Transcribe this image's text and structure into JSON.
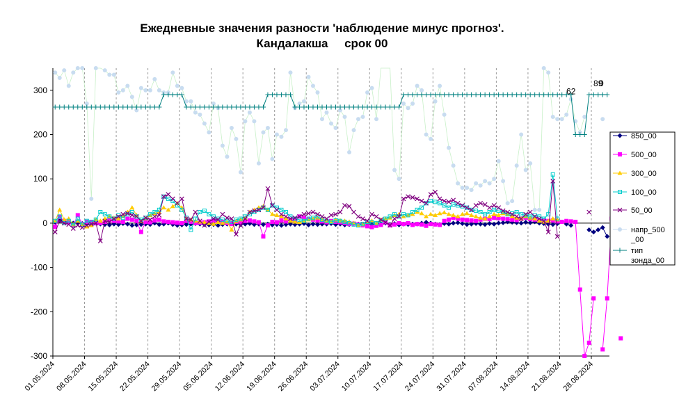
{
  "chart_data": {
    "type": "line",
    "title_lines": [
      "Ежедневные значения разности 'наблюдение минус прогноз'.",
      "Кандалакша     срок 00"
    ],
    "xlabel": "",
    "ylabel": "",
    "ylim": [
      -300,
      350
    ],
    "yticks": [
      -300,
      -200,
      -100,
      0,
      100,
      200,
      300
    ],
    "x_days": 123,
    "x_tick_labels": [
      "01.05.2024",
      "08.05.2024",
      "15.05.2024",
      "22.05.2024",
      "29.05.2024",
      "05.06.2024",
      "12.06.2024",
      "19.06.2024",
      "26.06.2024",
      "03.07.2024",
      "10.07.2024",
      "17.07.2024",
      "24.07.2024",
      "31.07.2024",
      "07.08.2024",
      "14.08.2024",
      "21.08.2024",
      "28.08.2024"
    ],
    "grid": "vertical dashed lines at x ticks",
    "legend_placement": "right",
    "series": [
      {
        "name": "850_00",
        "color": "#000080",
        "marker": "diamond",
        "style": "line",
        "values": [
          2,
          6,
          3,
          2,
          0,
          0,
          -1,
          -2,
          -3,
          0,
          -2,
          -3,
          -4,
          -2,
          -3,
          -1,
          -2,
          -5,
          -4,
          -3,
          -2,
          -3,
          0,
          -3,
          -2,
          0,
          -3,
          -5,
          -4,
          -3,
          -2,
          -1,
          -2,
          -3,
          -4,
          -3,
          -5,
          -3,
          -2,
          -1,
          -2,
          -3,
          -2,
          -1,
          -3,
          -2,
          -3,
          -2,
          -4,
          -3,
          -5,
          -3,
          -2,
          -3,
          -2,
          -1,
          -4,
          -2,
          -3,
          -2,
          -2,
          -1,
          -3,
          -2,
          -4,
          -3,
          -1,
          -2,
          -3,
          -4,
          -3,
          -2,
          -1,
          0,
          -3,
          -1,
          -4,
          -2,
          -3,
          -2,
          -2,
          0,
          2,
          0,
          -2,
          -3,
          -1,
          -2,
          0,
          1,
          -1,
          -3,
          -2,
          -1,
          -2,
          -3,
          -1,
          -2,
          0,
          1,
          3,
          2,
          1,
          0,
          2,
          1,
          3,
          0,
          -1,
          -2,
          -3,
          -1,
          null,
          -2,
          -5,
          null,
          null,
          null,
          -15,
          -20,
          -15,
          -10,
          -30
        ]
      },
      {
        "name": "500_00",
        "color": "#ff00ff",
        "marker": "square",
        "style": "line",
        "values": [
          -8,
          14,
          5,
          2,
          -5,
          18,
          -2,
          3,
          2,
          0,
          0,
          3,
          7,
          5,
          4,
          3,
          10,
          8,
          5,
          -20,
          3,
          2,
          6,
          8,
          4,
          3,
          2,
          1,
          0,
          5,
          3,
          0,
          1,
          2,
          4,
          6,
          5,
          3,
          0,
          -2,
          3,
          2,
          5,
          6,
          4,
          2,
          -30,
          -5,
          3,
          2,
          6,
          4,
          8,
          5,
          15,
          12,
          10,
          8,
          6,
          4,
          2,
          5,
          3,
          2,
          0,
          -2,
          -1,
          -3,
          -5,
          -7,
          -9,
          -6,
          -4,
          2,
          -5,
          -3,
          0,
          -2,
          0,
          -4,
          -2,
          -3,
          -6,
          -2,
          -3,
          -4,
          5,
          8,
          12,
          10,
          8,
          7,
          6,
          5,
          8,
          10,
          9,
          12,
          11,
          10,
          9,
          8,
          7,
          10,
          12,
          9,
          8,
          7,
          6,
          5,
          6,
          4,
          3,
          5,
          4,
          3,
          -150,
          -300,
          -270,
          -170,
          null,
          -285,
          -170,
          10,
          null,
          -260
        ]
      },
      {
        "name": "300_00",
        "color": "#ffcc00",
        "marker": "triangle",
        "style": "line",
        "values": [
          5,
          30,
          8,
          10,
          -3,
          5,
          -3,
          -8,
          -5,
          8,
          5,
          10,
          15,
          12,
          10,
          15,
          25,
          35,
          18,
          5,
          10,
          18,
          22,
          25,
          35,
          30,
          38,
          45,
          35,
          10,
          8,
          5,
          3,
          2,
          0,
          -2,
          2,
          0,
          3,
          -15,
          5,
          8,
          12,
          25,
          30,
          35,
          38,
          30,
          20,
          18,
          15,
          10,
          5,
          3,
          2,
          5,
          8,
          10,
          12,
          8,
          5,
          3,
          8,
          6,
          5,
          3,
          0,
          -5,
          -3,
          2,
          5,
          0,
          8,
          10,
          12,
          18,
          20,
          15,
          18,
          20,
          25,
          22,
          15,
          20,
          18,
          22,
          24,
          20,
          18,
          15,
          20,
          22,
          18,
          15,
          12,
          10,
          15,
          20,
          18,
          22,
          20,
          15,
          12,
          10,
          15,
          12,
          10,
          5,
          3,
          5,
          10,
          8,
          null,
          null,
          null,
          null,
          null,
          null,
          null,
          null,
          null,
          null,
          null
        ]
      },
      {
        "name": "100_00",
        "color": "#00cccc",
        "marker": "square-open",
        "style": "line",
        "values": [
          5,
          15,
          0,
          5,
          -5,
          10,
          -3,
          5,
          3,
          8,
          25,
          20,
          15,
          10,
          18,
          12,
          20,
          25,
          15,
          8,
          12,
          20,
          25,
          30,
          60,
          55,
          50,
          40,
          30,
          12,
          -15,
          10,
          25,
          28,
          20,
          15,
          10,
          8,
          5,
          3,
          8,
          10,
          15,
          20,
          25,
          30,
          35,
          30,
          40,
          35,
          30,
          25,
          15,
          10,
          8,
          5,
          10,
          12,
          15,
          8,
          5,
          3,
          6,
          5,
          3,
          0,
          -3,
          -5,
          -2,
          3,
          2,
          0,
          5,
          10,
          15,
          20,
          15,
          20,
          18,
          25,
          30,
          35,
          45,
          50,
          48,
          45,
          40,
          35,
          42,
          40,
          38,
          35,
          30,
          28,
          25,
          20,
          25,
          30,
          28,
          25,
          20,
          22,
          25,
          20,
          18,
          15,
          18,
          15,
          10,
          20,
          110,
          10,
          null,
          null,
          null,
          null,
          null,
          null,
          null,
          null,
          null
        ]
      },
      {
        "name": "50_00",
        "color": "#800080",
        "marker": "x",
        "style": "line",
        "values": [
          -20,
          5,
          0,
          -3,
          -12,
          -5,
          -10,
          -5,
          -2,
          0,
          -40,
          5,
          3,
          10,
          15,
          20,
          22,
          18,
          15,
          5,
          12,
          8,
          15,
          18,
          60,
          65,
          55,
          45,
          55,
          10,
          8,
          25,
          5,
          -5,
          3,
          10,
          8,
          20,
          12,
          10,
          -25,
          -5,
          10,
          25,
          28,
          30,
          35,
          78,
          40,
          30,
          20,
          15,
          10,
          12,
          15,
          20,
          22,
          25,
          20,
          15,
          10,
          18,
          20,
          25,
          40,
          38,
          25,
          15,
          10,
          5,
          20,
          15,
          8,
          2,
          -5,
          10,
          15,
          55,
          60,
          58,
          55,
          50,
          45,
          65,
          70,
          55,
          50,
          48,
          52,
          45,
          40,
          35,
          30,
          40,
          45,
          42,
          35,
          40,
          35,
          28,
          25,
          20,
          15,
          10,
          20,
          25,
          15,
          10,
          5,
          -20,
          95,
          -30,
          null,
          null,
          null,
          null,
          null,
          null,
          25,
          null,
          null
        ]
      },
      {
        "name": "напр_500_00",
        "color": "#c8dcf0",
        "line_color": "#c8f0c8",
        "marker": "circle",
        "style": "line",
        "values": [
          340,
          328,
          345,
          310,
          340,
          350,
          350,
          270,
          55,
          350,
          352,
          345,
          335,
          335,
          295,
          300,
          310,
          285,
          255,
          305,
          300,
          300,
          325,
          300,
          295,
          295,
          340,
          310,
          305,
          275,
          275,
          250,
          245,
          225,
          205,
          270,
          260,
          175,
          150,
          215,
          190,
          115,
          230,
          250,
          230,
          135,
          205,
          215,
          145,
          200,
          195,
          210,
          340,
          260,
          270,
          275,
          330,
          310,
          295,
          235,
          250,
          225,
          215,
          255,
          240,
          160,
          210,
          235,
          240,
          295,
          305,
          235,
          380,
          375,
          380,
          120,
          100,
          270,
          260,
          270,
          310,
          300,
          200,
          190,
          275,
          310,
          245,
          170,
          130,
          90,
          80,
          80,
          75,
          90,
          85,
          95,
          90,
          100,
          140,
          95,
          45,
          50,
          130,
          200,
          120,
          135,
          30,
          30,
          350,
          340,
          240,
          235,
          235,
          245,
          280,
          230,
          205,
          240,
          null,
          null,
          null,
          235,
          null
        ]
      },
      {
        "name": "тип зонда_00",
        "color": "#008080",
        "marker": "plus",
        "style": "line",
        "values": [
          262,
          262,
          262,
          262,
          262,
          262,
          262,
          262,
          262,
          262,
          262,
          262,
          262,
          262,
          262,
          262,
          262,
          262,
          262,
          262,
          262,
          262,
          262,
          262,
          290,
          290,
          290,
          290,
          290,
          262,
          262,
          262,
          262,
          262,
          262,
          262,
          262,
          262,
          262,
          262,
          262,
          262,
          262,
          262,
          262,
          262,
          262,
          290,
          290,
          290,
          290,
          290,
          290,
          262,
          262,
          262,
          262,
          262,
          262,
          262,
          262,
          262,
          262,
          262,
          262,
          262,
          262,
          262,
          262,
          262,
          262,
          262,
          262,
          262,
          262,
          262,
          262,
          290,
          290,
          290,
          290,
          290,
          290,
          290,
          290,
          290,
          290,
          290,
          290,
          290,
          290,
          290,
          290,
          290,
          290,
          290,
          290,
          290,
          290,
          290,
          290,
          290,
          290,
          290,
          290,
          290,
          290,
          290,
          290,
          290,
          290,
          290,
          290,
          290,
          290,
          200,
          200,
          200,
          290,
          290,
          290,
          290,
          290
        ]
      }
    ],
    "annotations": [
      {
        "text": "62",
        "x": 114.5,
        "y": 291
      },
      {
        "text": "89",
        "x": 120.5,
        "y": 309
      },
      {
        "text": "0",
        "x": 121.2,
        "y": 309
      }
    ]
  }
}
